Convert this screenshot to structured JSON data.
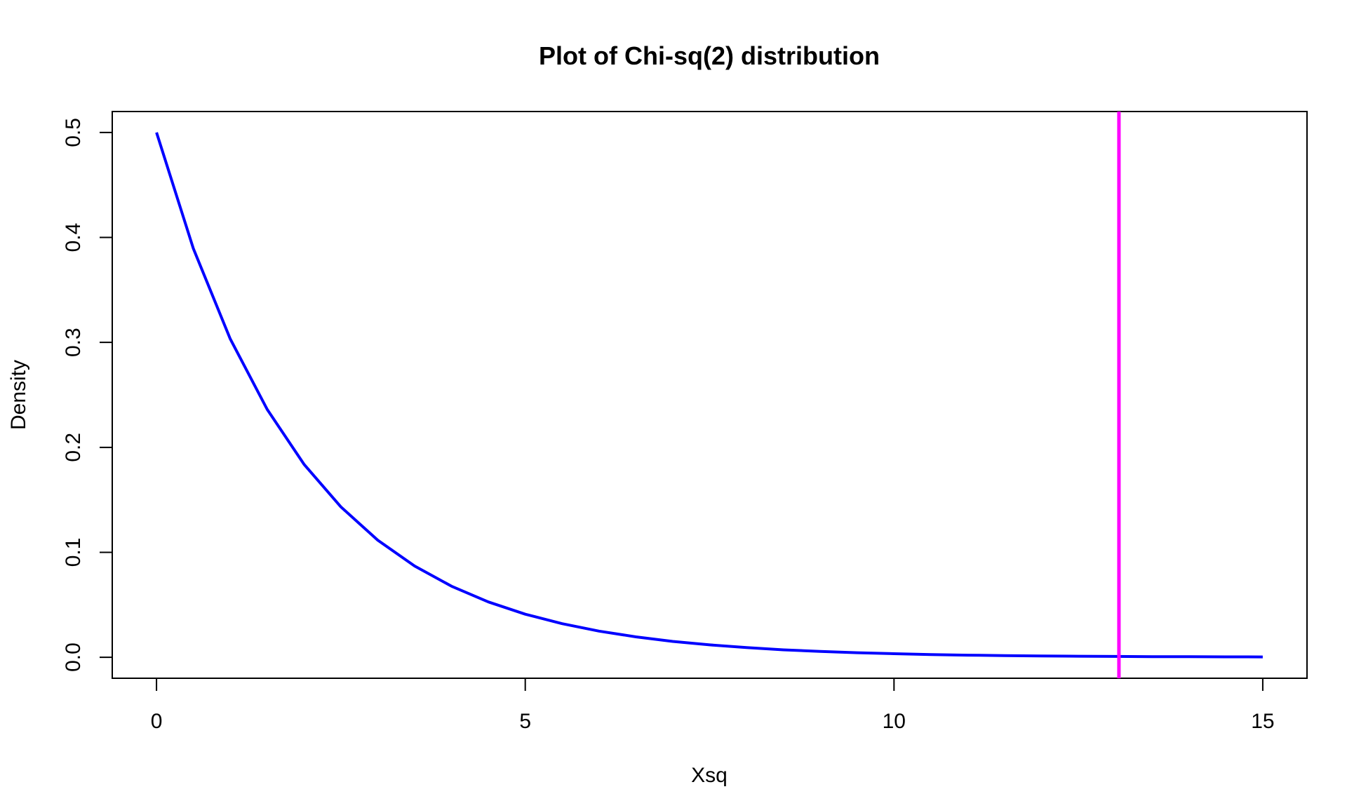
{
  "chart_data": {
    "type": "line",
    "title": "Plot of Chi-sq(2) distribution",
    "xlabel": "Xsq",
    "ylabel": "Density",
    "xlim": [
      -0.6,
      15.6
    ],
    "ylim": [
      -0.02,
      0.52
    ],
    "x_ticks": [
      0,
      5,
      10,
      15
    ],
    "x_tick_labels": [
      "0",
      "5",
      "10",
      "15"
    ],
    "y_ticks": [
      0.0,
      0.1,
      0.2,
      0.3,
      0.4,
      0.5
    ],
    "y_tick_labels": [
      "0.0",
      "0.1",
      "0.2",
      "0.3",
      "0.4",
      "0.5"
    ],
    "grid": false,
    "legend": "none",
    "series": [
      {
        "color": "#0000ff",
        "x": [
          0,
          0.5,
          1,
          1.5,
          2,
          2.5,
          3,
          3.5,
          4,
          4.5,
          5,
          5.5,
          6,
          6.5,
          7,
          7.5,
          8,
          8.5,
          9,
          9.5,
          10,
          10.5,
          11,
          11.5,
          12,
          12.5,
          13,
          13.5,
          14,
          14.5,
          15
        ],
        "y": [
          0.5,
          0.3894,
          0.3033,
          0.2362,
          0.1839,
          0.1433,
          0.1116,
          0.0869,
          0.0677,
          0.0527,
          0.041,
          0.032,
          0.0249,
          0.0194,
          0.0151,
          0.0118,
          0.0092,
          0.0071,
          0.0056,
          0.0043,
          0.0034,
          0.0026,
          0.002,
          0.0016,
          0.0012,
          0.001,
          0.0008,
          0.0006,
          0.0005,
          0.0004,
          0.0003
        ]
      }
    ],
    "vline": {
      "x": 13.05,
      "color": "#ff00ff"
    }
  }
}
